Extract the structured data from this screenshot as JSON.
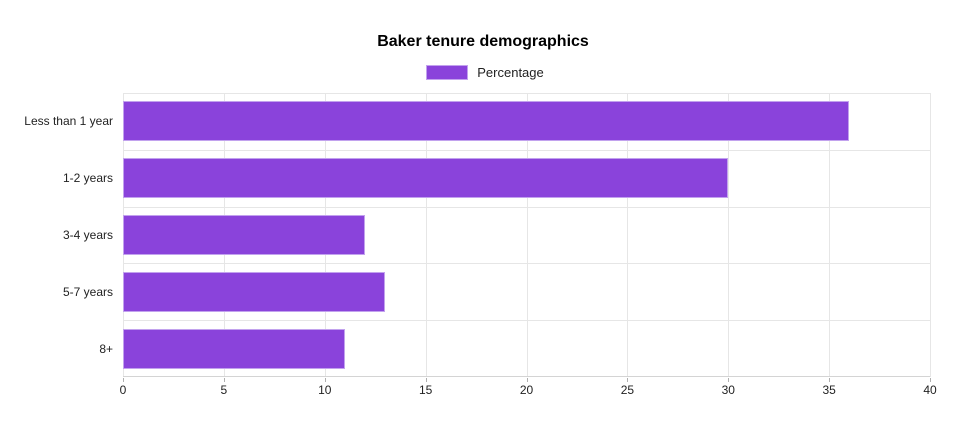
{
  "title": "Baker tenure demographics",
  "legend": {
    "label": "Percentage"
  },
  "chart_data": {
    "type": "bar",
    "orientation": "horizontal",
    "title": "Baker tenure demographics",
    "categories": [
      "Less than 1 year",
      "1-2 years",
      "3-4 years",
      "5-7 years",
      "8+"
    ],
    "series": [
      {
        "name": "Percentage",
        "values": [
          36,
          30,
          12,
          13,
          11
        ]
      }
    ],
    "xlabel": "",
    "ylabel": "",
    "xlim": [
      0,
      40
    ],
    "xticks": [
      0,
      5,
      10,
      15,
      20,
      25,
      30,
      35,
      40
    ],
    "grid": true,
    "legend_position": "top-center",
    "colors": {
      "bar_fill": "#8a43db",
      "bar_border": "#c2a2ee",
      "gridline": "#e6e6e6",
      "axis_line": "#d4d4d4",
      "tick_mark": "#b0b0b0",
      "label_text": "#222222",
      "title_text": "#000000"
    }
  }
}
